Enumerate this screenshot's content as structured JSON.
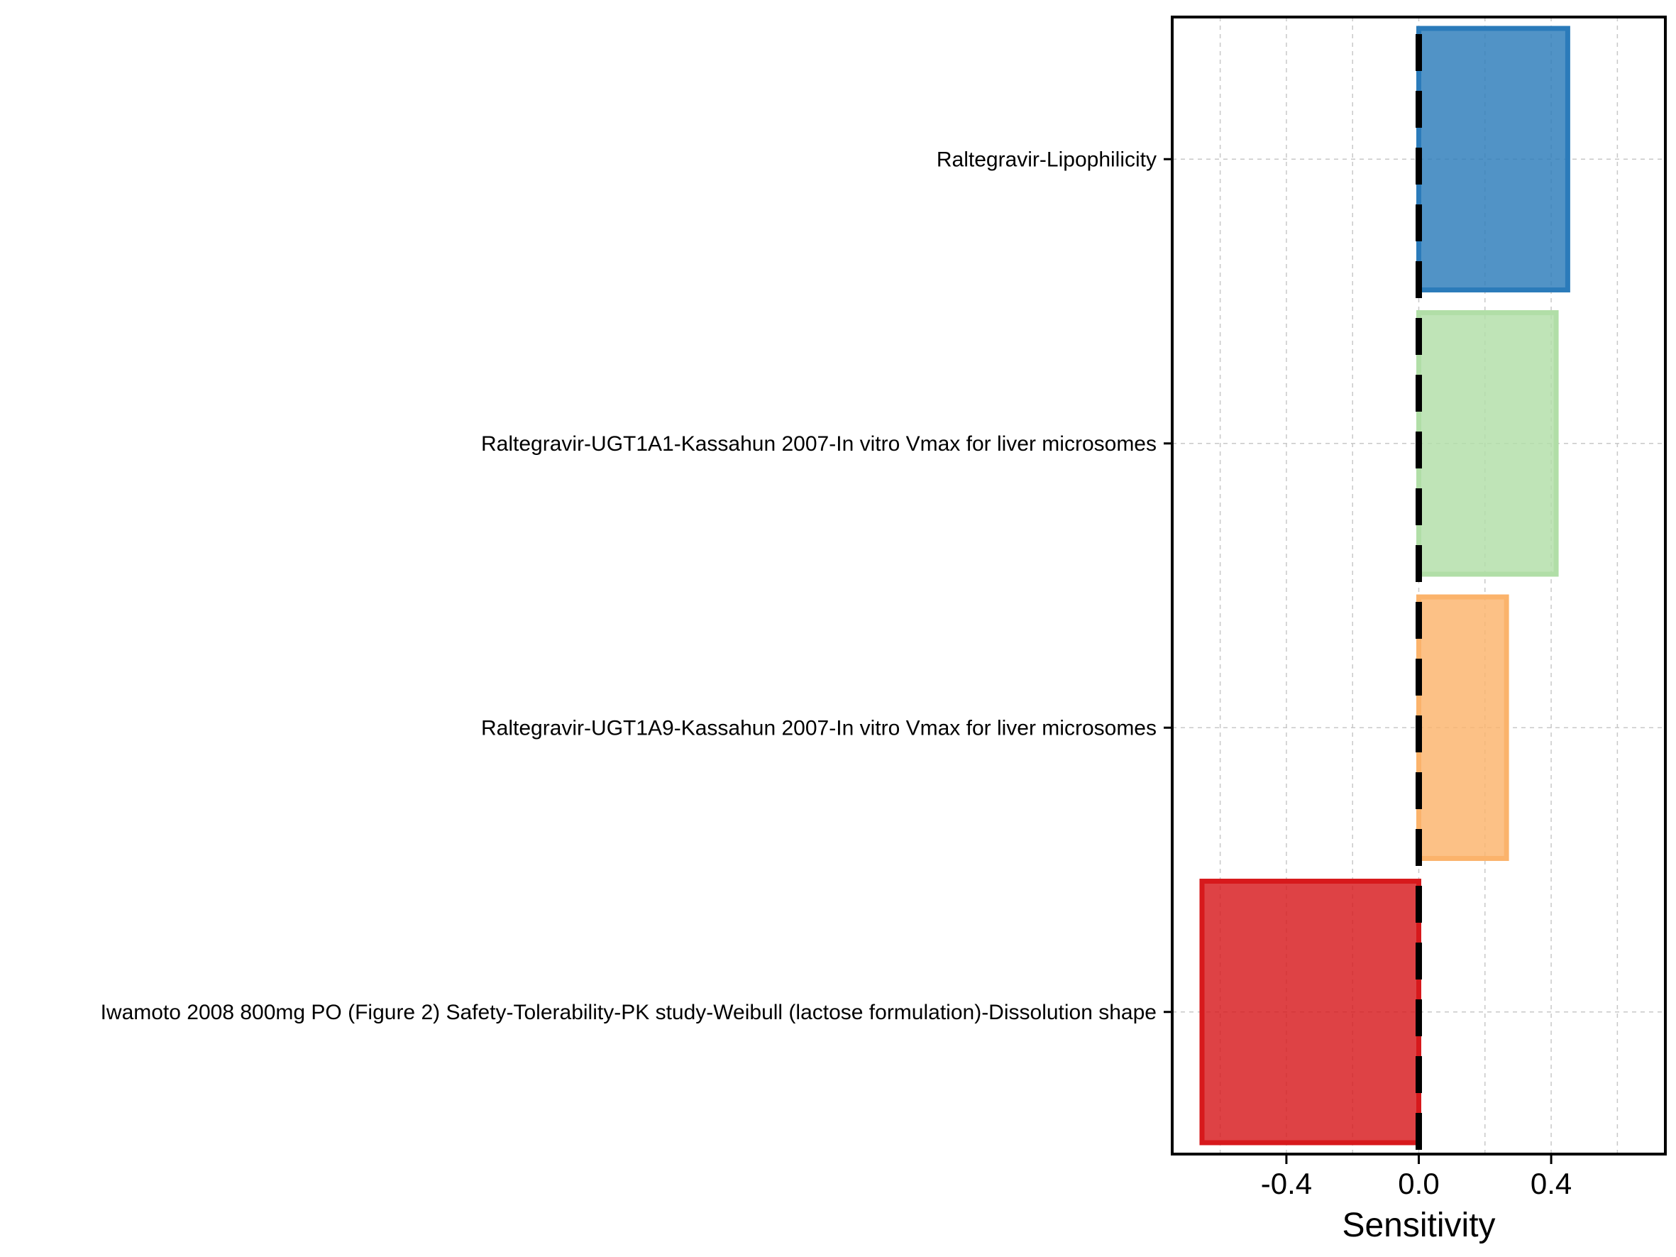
{
  "chart_data": {
    "type": "bar",
    "orientation": "horizontal",
    "categories": [
      "Raltegravir-Lipophilicity",
      "Raltegravir-UGT1A1-Kassahun 2007-In vitro Vmax for liver microsomes",
      "Raltegravir-UGT1A9-Kassahun 2007-In vitro Vmax for liver microsomes",
      "Iwamoto 2008 800mg PO (Figure 2) Safety-Tolerability-PK study-Weibull (lactose formulation)-Dissolution shape"
    ],
    "values": [
      0.45,
      0.415,
      0.265,
      -0.655
    ],
    "colors": [
      "#2b7bba",
      "#b1dea7",
      "#fbb36b",
      "#d7191c"
    ],
    "xlabel": "Sensitivity",
    "ylabel": "",
    "xlim": [
      -0.745,
      0.745
    ],
    "xticks": [
      -0.4,
      0.0,
      0.4
    ],
    "xtick_labels": [
      "-0.4",
      "0.0",
      "0.4"
    ],
    "grid": true,
    "reference_line": 0.0
  }
}
